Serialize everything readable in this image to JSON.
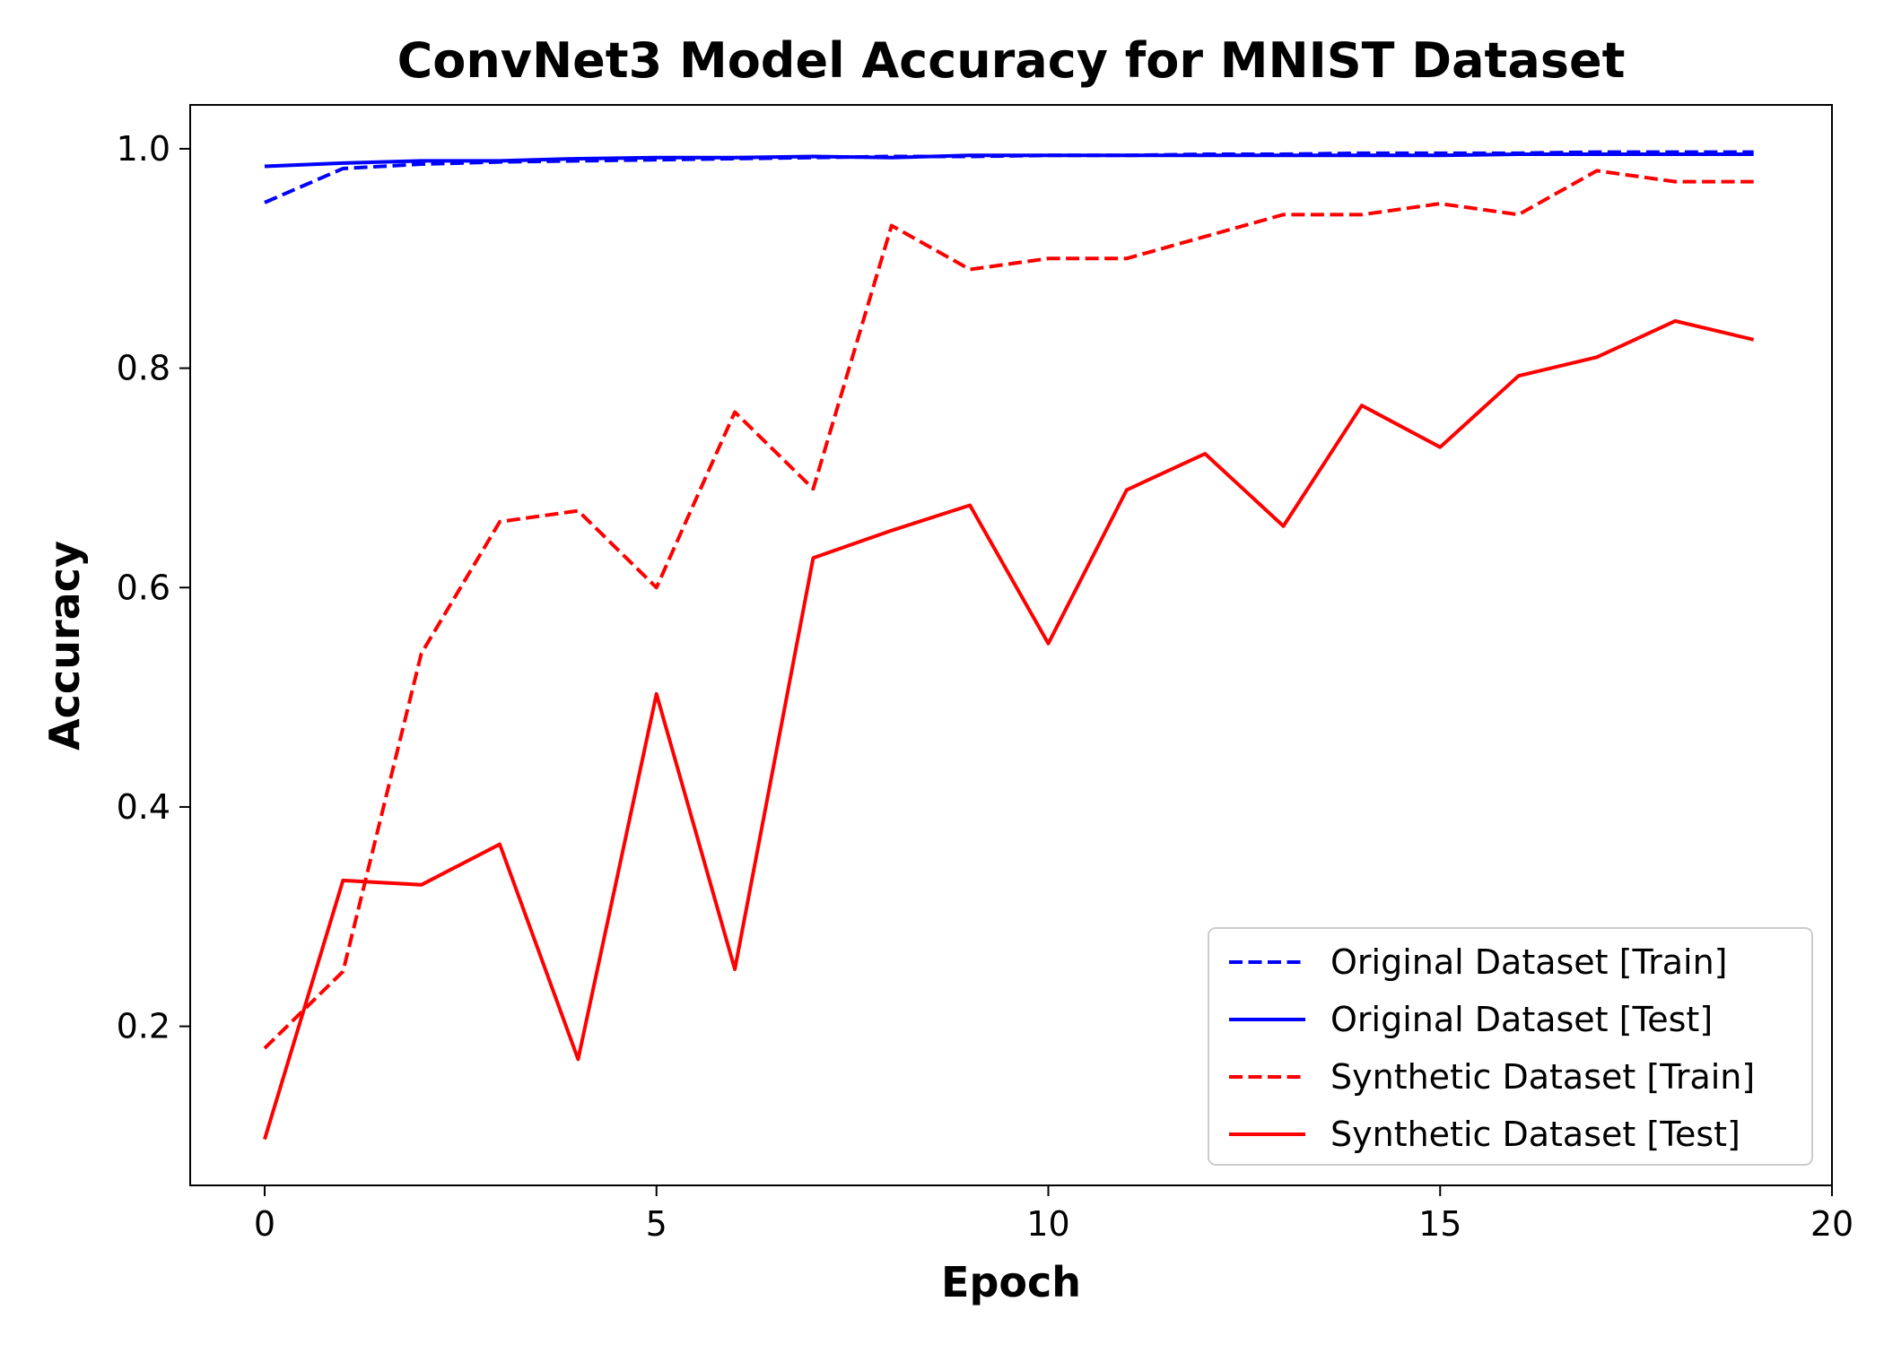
{
  "chart_data": {
    "type": "line",
    "title": "ConvNet3 Model Accuracy for MNIST Dataset",
    "xlabel": "Epoch",
    "ylabel": "Accuracy",
    "xlim": [
      -0.95,
      20
    ],
    "ylim": [
      0.055,
      1.04
    ],
    "xticks": [
      0,
      5,
      10,
      15,
      20
    ],
    "yticks": [
      0.2,
      0.4,
      0.6,
      0.8,
      1.0
    ],
    "xtick_labels": [
      "0",
      "5",
      "10",
      "15",
      "20"
    ],
    "ytick_labels": [
      "0.2",
      "0.4",
      "0.6",
      "0.8",
      "1.0"
    ],
    "grid": false,
    "legend_position": "bottom-right",
    "x": [
      0,
      1,
      2,
      3,
      4,
      5,
      6,
      7,
      8,
      9,
      10,
      11,
      12,
      13,
      14,
      15,
      16,
      17,
      18,
      19
    ],
    "series": [
      {
        "name": "Original Dataset [Train]",
        "color": "#0000ff",
        "style": "dashed",
        "values": [
          0.951,
          0.982,
          0.986,
          0.988,
          0.989,
          0.99,
          0.991,
          0.992,
          0.993,
          0.993,
          0.994,
          0.994,
          0.995,
          0.995,
          0.996,
          0.996,
          0.996,
          0.997,
          0.997,
          0.997
        ]
      },
      {
        "name": "Original Dataset [Test]",
        "color": "#0000ff",
        "style": "solid",
        "values": [
          0.984,
          0.987,
          0.989,
          0.989,
          0.991,
          0.992,
          0.992,
          0.993,
          0.992,
          0.994,
          0.994,
          0.994,
          0.994,
          0.994,
          0.994,
          0.994,
          0.995,
          0.995,
          0.995,
          0.995
        ]
      },
      {
        "name": "Synthetic Dataset [Train]",
        "color": "#ff0000",
        "style": "dashed",
        "values": [
          0.18,
          0.25,
          0.54,
          0.66,
          0.67,
          0.6,
          0.76,
          0.69,
          0.93,
          0.89,
          0.9,
          0.9,
          0.92,
          0.94,
          0.94,
          0.95,
          0.94,
          0.98,
          0.97,
          0.97
        ]
      },
      {
        "name": "Synthetic Dataset [Test]",
        "color": "#ff0000",
        "style": "solid",
        "values": [
          0.097,
          0.333,
          0.329,
          0.366,
          0.17,
          0.503,
          0.252,
          0.627,
          0.652,
          0.675,
          0.549,
          0.689,
          0.722,
          0.656,
          0.766,
          0.728,
          0.793,
          0.81,
          0.843,
          0.826
        ]
      }
    ]
  }
}
